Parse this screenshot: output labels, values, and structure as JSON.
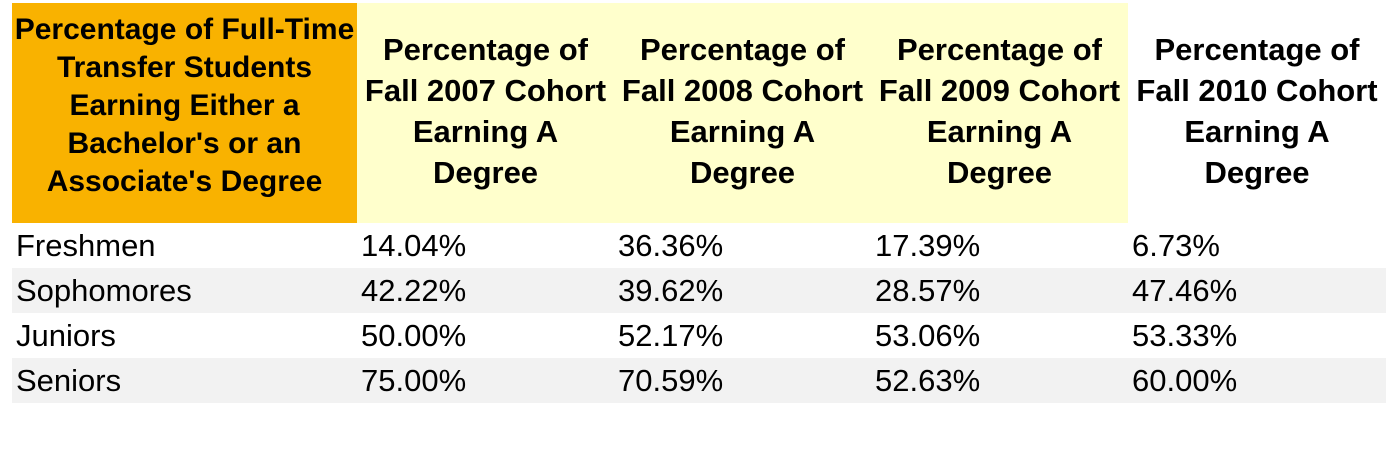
{
  "table": {
    "corner_header": "Percentage of Full-Time Transfer Students Earning Either a Bachelor's or an Associate's Degree",
    "column_headers": [
      "Percentage of Fall 2007 Cohort Earning A Degree",
      "Percentage of Fall 2008 Cohort Earning A Degree",
      "Percentage of Fall 2009 Cohort Earning A Degree",
      "Percentage of Fall 2010 Cohort Earning A Degree"
    ],
    "rows": [
      {
        "label": "Freshmen",
        "values": [
          "14.04%",
          "36.36%",
          "17.39%",
          "6.73%"
        ]
      },
      {
        "label": "Sophomores",
        "values": [
          "42.22%",
          "39.62%",
          "28.57%",
          "47.46%"
        ]
      },
      {
        "label": "Juniors",
        "values": [
          "50.00%",
          "52.17%",
          "53.06%",
          "53.33%"
        ]
      },
      {
        "label": "Seniors",
        "values": [
          "75.00%",
          "70.59%",
          "52.63%",
          "60.00%"
        ]
      }
    ]
  },
  "colors": {
    "corner_header_bg": "#f9b200",
    "column_header_bg": "#ffffcc",
    "alt_row_bg": "#f2f2f2"
  }
}
